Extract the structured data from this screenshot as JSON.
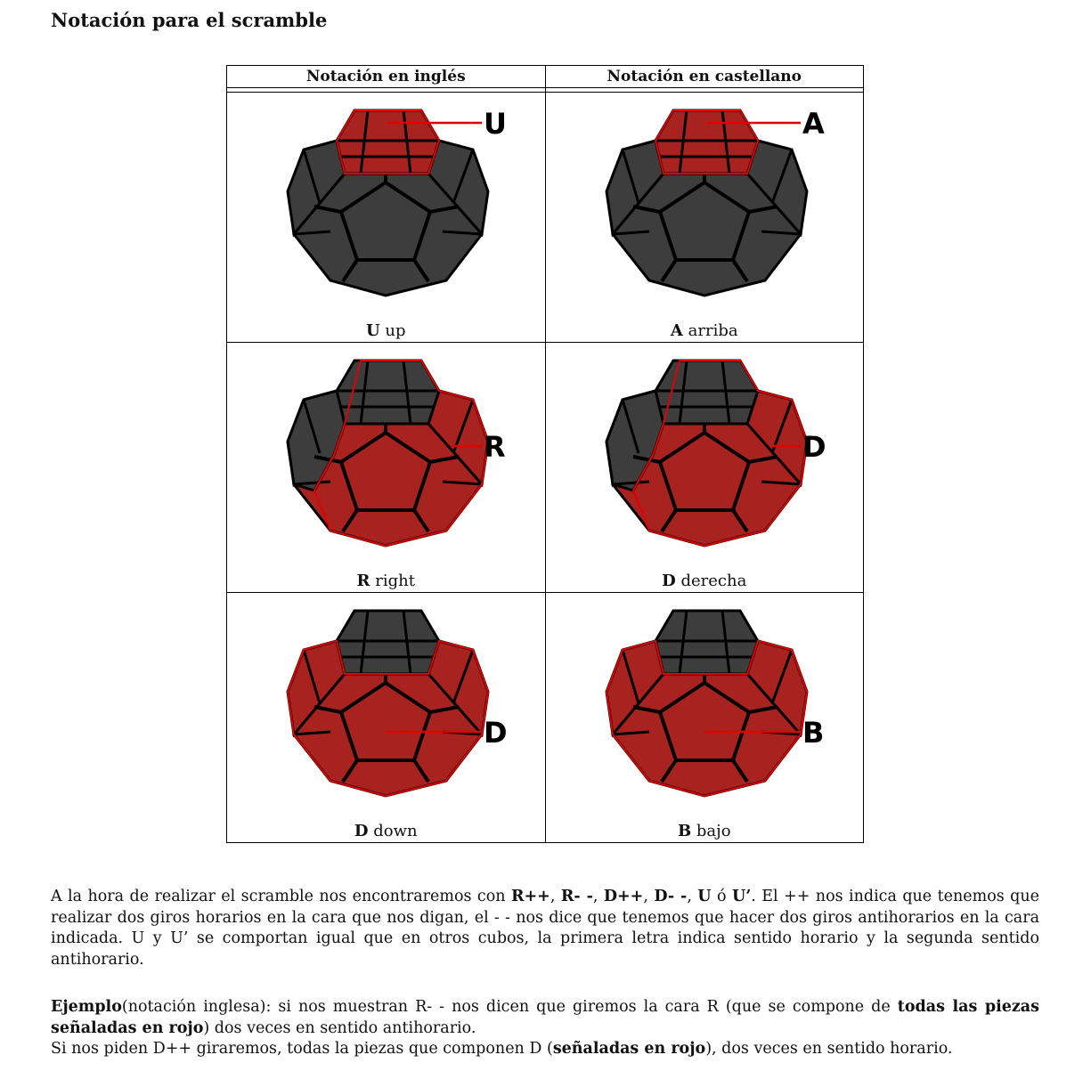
{
  "title": "Notación para el scramble",
  "table": {
    "headers": [
      "Notación en inglés",
      "Notación en castellano"
    ],
    "rows": [
      [
        {
          "letter": "U",
          "word": "up",
          "highlight": "top"
        },
        {
          "letter": "A",
          "word": "arriba",
          "highlight": "top"
        }
      ],
      [
        {
          "letter": "R",
          "word": "right",
          "highlight": "right"
        },
        {
          "letter": "D",
          "word": "derecha",
          "highlight": "right"
        }
      ],
      [
        {
          "letter": "D",
          "word": "down",
          "highlight": "bottom"
        },
        {
          "letter": "B",
          "word": "bajo",
          "highlight": "bottom"
        }
      ]
    ]
  },
  "colors": {
    "highlight": "#a8221f",
    "piece": "#3d3d3d",
    "border": "#000000",
    "outline_red": "#e00000"
  },
  "paragraph1": {
    "t1": "A la hora de realizar el scramble nos encontraremos con ",
    "b1": "R++",
    "t2": ", ",
    "b2": "R- -",
    "t3": ", ",
    "b3": "D++",
    "t4": ", ",
    "b4": "D- -",
    "t5": ", ",
    "b5": "U",
    "t6": " ó ",
    "b6": "U’",
    "t7": ". El ++ nos indica que tenemos que realizar dos giros horarios en la cara que nos digan, el - - nos dice que tenemos que hacer dos giros antihorarios en la cara indicada. U y U’ se comportan igual que en otros cubos, la primera letra indica sentido horario y la segunda sentido antihorario."
  },
  "paragraph2": {
    "b1": "Ejemplo",
    "t1": "(notación inglesa): si nos muestran R- - nos dicen que giremos la cara R (que se compone de ",
    "b2": "todas las piezas señaladas en rojo",
    "t2": ") dos veces en sentido antihorario."
  },
  "paragraph3": {
    "t1": "Si nos piden D++ giraremos, todas la piezas que componen D (",
    "b1": "señaladas en rojo",
    "t2": "), dos veces en sentido horario."
  }
}
